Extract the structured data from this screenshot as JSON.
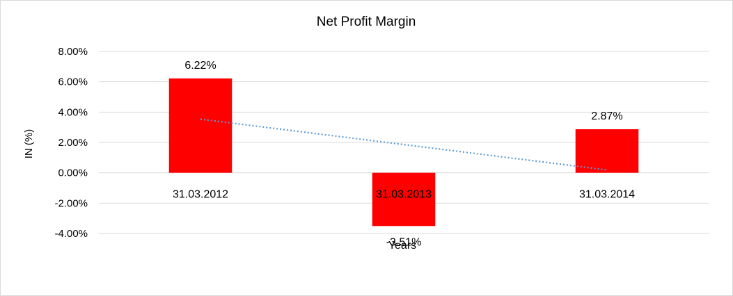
{
  "chart_data": {
    "type": "bar",
    "title": "Net Profit Margin",
    "xlabel": "Years",
    "ylabel": "IN (%)",
    "categories": [
      "31.03.2012",
      "31.03.2013",
      "31.03.2014"
    ],
    "series": [
      {
        "values": [
          6.22,
          -3.51,
          2.87
        ],
        "color": "#ff0000"
      }
    ],
    "data_labels": [
      "6.22%",
      "-3.51%",
      "2.87%"
    ],
    "ylim": [
      -4,
      8
    ],
    "y_ticks": [
      8,
      6,
      4,
      2,
      0,
      -2,
      -4
    ],
    "y_tick_labels": [
      "8.00%",
      "6.00%",
      "4.00%",
      "2.00%",
      "0.00%",
      "-2.00%",
      "-4.00%"
    ],
    "trendline": {
      "type": "linear",
      "style": "dotted",
      "color": "#5b9bd5"
    },
    "grid": true,
    "legend": "none"
  }
}
